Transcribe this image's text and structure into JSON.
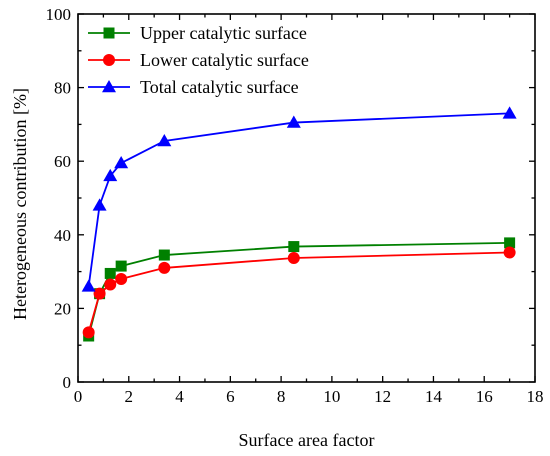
{
  "chart_data": {
    "type": "line",
    "xlabel": "Surface area factor",
    "ylabel": "Heterogeneous contribution [%]",
    "xlim": [
      0,
      18
    ],
    "ylim": [
      0,
      100
    ],
    "xticks": [
      0,
      2,
      4,
      6,
      8,
      10,
      12,
      14,
      16,
      18
    ],
    "yticks": [
      0,
      20,
      40,
      60,
      80,
      100
    ],
    "grid": false,
    "legend_position": "top-left",
    "series": [
      {
        "name": "Upper catalytic surface",
        "color": "#008000",
        "marker": "square",
        "x": [
          0.42,
          0.85,
          1.27,
          1.7,
          3.4,
          8.5,
          17.0
        ],
        "y": [
          12.5,
          24.0,
          29.5,
          31.5,
          34.5,
          36.8,
          37.8
        ]
      },
      {
        "name": "Lower catalytic surface",
        "color": "#ff0000",
        "marker": "circle",
        "x": [
          0.42,
          0.85,
          1.27,
          1.7,
          3.4,
          8.5,
          17.0
        ],
        "y": [
          13.5,
          24.0,
          26.5,
          28.0,
          31.0,
          33.7,
          35.2
        ]
      },
      {
        "name": "Total catalytic surface",
        "color": "#0000ff",
        "marker": "triangle",
        "x": [
          0.42,
          0.85,
          1.27,
          1.7,
          3.4,
          8.5,
          17.0
        ],
        "y": [
          26.0,
          48.0,
          56.0,
          59.5,
          65.5,
          70.5,
          73.0
        ]
      }
    ]
  }
}
